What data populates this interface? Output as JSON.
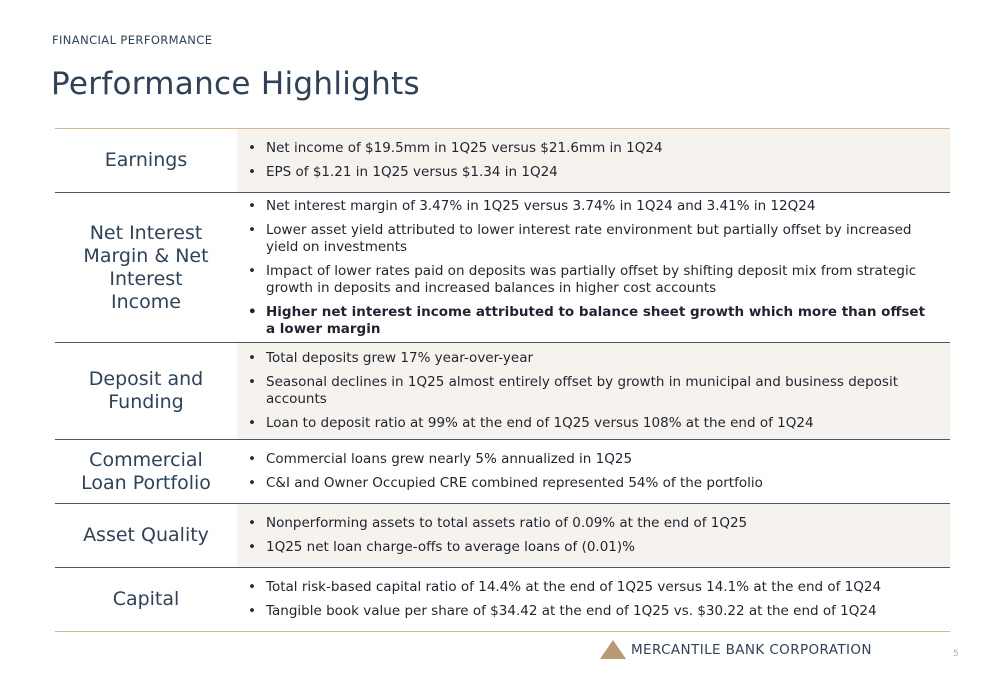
{
  "header": {
    "section_label": "FINANCIAL PERFORMANCE",
    "title": "Performance Highlights"
  },
  "rows": [
    {
      "label": "Earnings",
      "bullets": [
        "Net income of $19.5mm in 1Q25 versus $21.6mm in 1Q24",
        "EPS of $1.21 in 1Q25 versus $1.34 in 1Q24"
      ]
    },
    {
      "label": "Net Interest Margin & Net Interest Income",
      "bullets": [
        "Net interest margin of 3.47% in 1Q25 versus 3.74% in 1Q24 and 3.41% in 12Q24",
        "Lower asset yield attributed to lower interest rate environment but partially offset by increased yield on investments",
        "Impact of lower rates paid on deposits was partially offset by shifting deposit mix from strategic growth in deposits and increased balances in higher cost accounts",
        "Higher net interest income attributed to balance sheet growth which more than offset a lower margin"
      ]
    },
    {
      "label": "Deposit and Funding",
      "bullets": [
        "Total deposits grew 17% year-over-year",
        "Seasonal declines in 1Q25 almost entirely offset by growth in municipal and business deposit accounts",
        "Loan to deposit ratio at 99% at the end of 1Q25 versus 108% at the end of 1Q24"
      ]
    },
    {
      "label": "Commercial Loan Portfolio",
      "bullets": [
        "Commercial loans grew nearly 5% annualized in 1Q25",
        "C&I and Owner Occupied CRE combined represented 54% of the portfolio"
      ]
    },
    {
      "label": "Asset Quality",
      "bullets": [
        "Nonperforming assets to total assets ratio of 0.09% at the end of 1Q25",
        "1Q25 net loan charge-offs to average loans of (0.01)%"
      ]
    },
    {
      "label": "Capital",
      "bullets": [
        "Total risk-based capital ratio of 14.4% at the end of 1Q25 versus 14.1% at the end of 1Q24",
        "Tangible book value per share of $34.42 at the end of 1Q25 vs. $30.22 at the end of 1Q24"
      ]
    }
  ],
  "footer": {
    "logo_text": "MERCANTILE BANK CORPORATION",
    "page_number": "5"
  },
  "colors": {
    "title": "#2e4259",
    "accent_rule": "#d4b896",
    "row_divider": "#4a5566",
    "shaded_row": "#f6f3ee",
    "logo_triangle": "#b89a72"
  }
}
